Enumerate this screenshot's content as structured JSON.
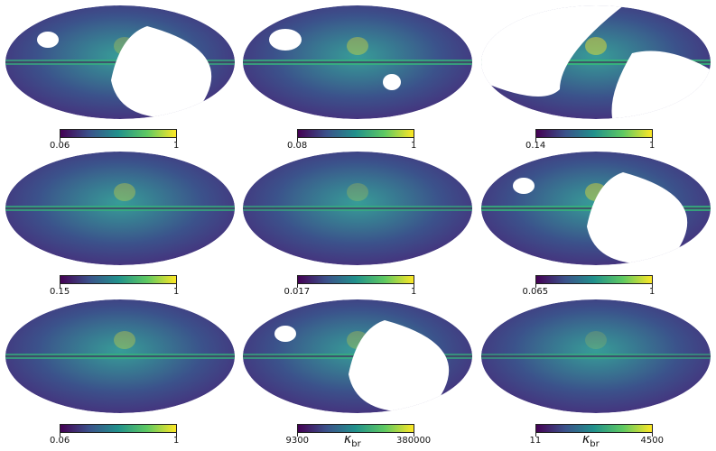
{
  "panels": [
    {
      "min": "0.06",
      "max": "1",
      "mask": "sky-right"
    },
    {
      "min": "0.08",
      "max": "1",
      "mask": "spots"
    },
    {
      "min": "0.14",
      "max": "1",
      "mask": "band"
    },
    {
      "min": "0.15",
      "max": "1",
      "mask": "none"
    },
    {
      "min": "0.017",
      "max": "1",
      "mask": "none"
    },
    {
      "min": "0.065",
      "max": "1",
      "mask": "sky-right"
    },
    {
      "min": "0.06",
      "max": "1",
      "mask": "none"
    },
    {
      "min": "9300",
      "max": "380000",
      "mask": "sky-right",
      "unit": "κ",
      "unit_sub": "br"
    },
    {
      "min": "11",
      "max": "4500",
      "mask": "none",
      "unit": "κ",
      "unit_sub": "br"
    }
  ],
  "colormap": "viridis",
  "colors": {
    "low": "#440154",
    "mid": "#21918c",
    "high": "#fde725"
  }
}
